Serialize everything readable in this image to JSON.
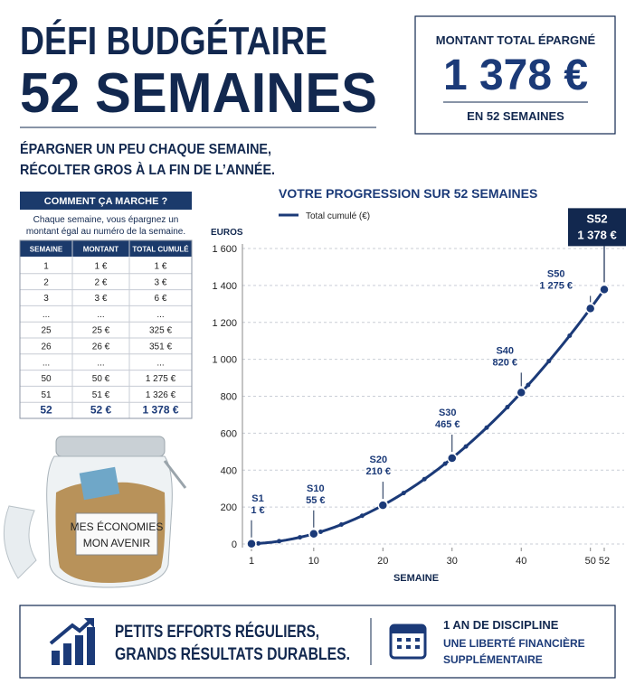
{
  "header": {
    "title_lines": [
      "DÉFI BUDGÉTAIRE",
      "52 SEMAINES"
    ],
    "subtitle_lines": [
      "ÉPARGNER UN PEU CHAQUE SEMAINE,",
      "RÉCOLTER GROS À LA FIN DE L’ANNÉE."
    ]
  },
  "total_box": {
    "label": "MONTANT TOTAL ÉPARGNÉ",
    "amount": "1 378 €",
    "note": "EN 52 SEMAINES"
  },
  "table": {
    "title": "COMMENT ÇA MARCHE ?",
    "description_lines": [
      "Chaque semaine, vous épargnez un",
      "montant égal au numéro de la semaine."
    ],
    "columns": [
      "SEMAINE",
      "MONTANT",
      "TOTAL CUMULÉ"
    ],
    "rows": [
      [
        "1",
        "1 €",
        "1 €"
      ],
      [
        "2",
        "2 €",
        "3 €"
      ],
      [
        "3",
        "3 €",
        "6 €"
      ],
      [
        "...",
        "...",
        "..."
      ],
      [
        "25",
        "25 €",
        "325 €"
      ],
      [
        "26",
        "26 €",
        "351 €"
      ],
      [
        "...",
        "...",
        "..."
      ],
      [
        "50",
        "50 €",
        "1 275 €"
      ],
      [
        "51",
        "51 €",
        "1 326 €"
      ],
      [
        "52",
        "52 €",
        "1 378 €"
      ]
    ]
  },
  "jar": {
    "label_lines": [
      "MES ÉCONOMIES",
      "MON AVENIR"
    ]
  },
  "chart_data": {
    "type": "line",
    "title": "VOTRE PROGRESSION SUR 52 SEMAINES",
    "y_label": "EUROS",
    "x_label": "SEMAINE",
    "x": [
      1,
      2,
      3,
      4,
      5,
      6,
      7,
      8,
      9,
      10,
      11,
      12,
      13,
      14,
      15,
      16,
      17,
      18,
      19,
      20,
      21,
      22,
      23,
      24,
      25,
      26,
      27,
      28,
      29,
      30,
      31,
      32,
      33,
      34,
      35,
      36,
      37,
      38,
      39,
      40,
      41,
      42,
      43,
      44,
      45,
      46,
      47,
      48,
      49,
      50,
      51,
      52
    ],
    "series": [
      {
        "name": "Total cumulé (€)",
        "color": "#1b3a78",
        "values": [
          1,
          3,
          6,
          10,
          15,
          21,
          28,
          36,
          45,
          55,
          66,
          78,
          91,
          105,
          120,
          136,
          153,
          171,
          190,
          210,
          231,
          253,
          276,
          300,
          325,
          351,
          378,
          406,
          435,
          465,
          496,
          528,
          561,
          595,
          630,
          666,
          703,
          741,
          780,
          820,
          861,
          903,
          946,
          990,
          1035,
          1081,
          1128,
          1176,
          1225,
          1275,
          1326,
          1378
        ]
      }
    ],
    "xlim": [
      1,
      52
    ],
    "xticks": [
      1,
      10,
      20,
      30,
      40,
      50,
      52
    ],
    "ylim": [
      0,
      1600
    ],
    "yticks": [
      0,
      200,
      400,
      600,
      800,
      {
        "value": 1000,
        "label": "1 000"
      },
      {
        "value": 1200,
        "label": "1 200"
      },
      {
        "value": 1400,
        "label": "1 400"
      },
      {
        "value": 1600,
        "label": "1 600"
      }
    ],
    "grid": true,
    "annotations": [
      {
        "label": "S1",
        "x": 1,
        "value": 1,
        "value_label": "1 €"
      },
      {
        "label": "S10",
        "x": 10,
        "value": 55,
        "value_label": "55 €"
      },
      {
        "label": "S20",
        "x": 20,
        "value": 210,
        "value_label": "210 €"
      },
      {
        "label": "S30",
        "x": 30,
        "value": 465,
        "value_label": "465 €"
      },
      {
        "label": "S40",
        "x": 40,
        "value": 820,
        "value_label": "820 €"
      },
      {
        "label": "S50",
        "x": 50,
        "value": 1275,
        "value_label": "1 275 €"
      },
      {
        "label": "S52",
        "x": 52,
        "value": 1378,
        "value_label": "1 378 €"
      }
    ]
  },
  "footer": {
    "left_lines": [
      "PETITS EFFORTS RÉGULIERS,",
      "GRANDS RÉSULTATS DURABLES."
    ],
    "right_title": "1 AN DE DISCIPLINE",
    "right_lines": [
      "UNE LIBERTÉ FINANCIÈRE",
      "SUPPLÉMENTAIRE"
    ]
  }
}
